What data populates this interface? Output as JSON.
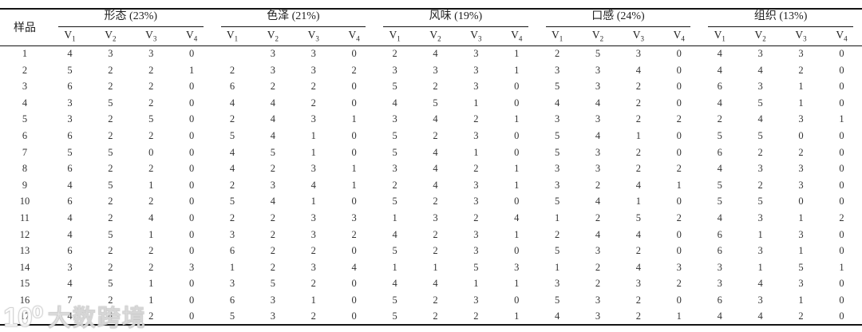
{
  "table": {
    "sample_header": "样品",
    "groups": [
      {
        "label": "形态 (23%)"
      },
      {
        "label": "色泽 (21%)"
      },
      {
        "label": "风味 (19%)"
      },
      {
        "label": "口感 (24%)"
      },
      {
        "label": "组织 (13%)"
      }
    ],
    "subheaders": [
      {
        "base": "V",
        "sub": "1"
      },
      {
        "base": "V",
        "sub": "2"
      },
      {
        "base": "V",
        "sub": "3"
      },
      {
        "base": "V",
        "sub": "4"
      }
    ],
    "rows": [
      {
        "sample": "1",
        "values": [
          "4",
          "3",
          "3",
          "0",
          "",
          "3",
          "3",
          "0",
          "2",
          "4",
          "3",
          "1",
          "2",
          "5",
          "3",
          "0",
          "4",
          "3",
          "3",
          "0"
        ]
      },
      {
        "sample": "2",
        "values": [
          "5",
          "2",
          "2",
          "1",
          "2",
          "3",
          "3",
          "2",
          "3",
          "3",
          "3",
          "1",
          "3",
          "3",
          "4",
          "0",
          "4",
          "4",
          "2",
          "0"
        ]
      },
      {
        "sample": "3",
        "values": [
          "6",
          "2",
          "2",
          "0",
          "6",
          "2",
          "2",
          "0",
          "5",
          "2",
          "3",
          "0",
          "5",
          "3",
          "2",
          "0",
          "6",
          "3",
          "1",
          "0"
        ]
      },
      {
        "sample": "4",
        "values": [
          "3",
          "5",
          "2",
          "0",
          "4",
          "4",
          "2",
          "0",
          "4",
          "5",
          "1",
          "0",
          "4",
          "4",
          "2",
          "0",
          "4",
          "5",
          "1",
          "0"
        ]
      },
      {
        "sample": "5",
        "values": [
          "3",
          "2",
          "5",
          "0",
          "2",
          "4",
          "3",
          "1",
          "3",
          "4",
          "2",
          "1",
          "3",
          "3",
          "2",
          "2",
          "2",
          "4",
          "3",
          "1"
        ]
      },
      {
        "sample": "6",
        "values": [
          "6",
          "2",
          "2",
          "0",
          "5",
          "4",
          "1",
          "0",
          "5",
          "2",
          "3",
          "0",
          "5",
          "4",
          "1",
          "0",
          "5",
          "5",
          "0",
          "0"
        ]
      },
      {
        "sample": "7",
        "values": [
          "5",
          "5",
          "0",
          "0",
          "4",
          "5",
          "1",
          "0",
          "5",
          "4",
          "1",
          "0",
          "5",
          "3",
          "2",
          "0",
          "6",
          "2",
          "2",
          "0"
        ]
      },
      {
        "sample": "8",
        "values": [
          "6",
          "2",
          "2",
          "0",
          "4",
          "2",
          "3",
          "1",
          "3",
          "4",
          "2",
          "1",
          "3",
          "3",
          "2",
          "2",
          "4",
          "3",
          "3",
          "0"
        ]
      },
      {
        "sample": "9",
        "values": [
          "4",
          "5",
          "1",
          "0",
          "2",
          "3",
          "4",
          "1",
          "2",
          "4",
          "3",
          "1",
          "3",
          "2",
          "4",
          "1",
          "5",
          "2",
          "3",
          "0"
        ]
      },
      {
        "sample": "10",
        "values": [
          "6",
          "2",
          "2",
          "0",
          "5",
          "4",
          "1",
          "0",
          "5",
          "2",
          "3",
          "0",
          "5",
          "4",
          "1",
          "0",
          "5",
          "5",
          "0",
          "0"
        ]
      },
      {
        "sample": "11",
        "values": [
          "4",
          "2",
          "4",
          "0",
          "2",
          "2",
          "3",
          "3",
          "1",
          "3",
          "2",
          "4",
          "1",
          "2",
          "5",
          "2",
          "4",
          "3",
          "1",
          "2"
        ]
      },
      {
        "sample": "12",
        "values": [
          "4",
          "5",
          "1",
          "0",
          "3",
          "2",
          "3",
          "2",
          "4",
          "2",
          "3",
          "1",
          "2",
          "4",
          "4",
          "0",
          "6",
          "1",
          "3",
          "0"
        ]
      },
      {
        "sample": "13",
        "values": [
          "6",
          "2",
          "2",
          "0",
          "6",
          "2",
          "2",
          "0",
          "5",
          "2",
          "3",
          "0",
          "5",
          "3",
          "2",
          "0",
          "6",
          "3",
          "1",
          "0"
        ]
      },
      {
        "sample": "14",
        "values": [
          "3",
          "2",
          "2",
          "3",
          "1",
          "2",
          "3",
          "4",
          "1",
          "1",
          "5",
          "3",
          "1",
          "2",
          "4",
          "3",
          "3",
          "1",
          "5",
          "1"
        ]
      },
      {
        "sample": "15",
        "values": [
          "4",
          "5",
          "1",
          "0",
          "3",
          "5",
          "2",
          "0",
          "4",
          "4",
          "1",
          "1",
          "3",
          "2",
          "3",
          "2",
          "3",
          "4",
          "3",
          "0"
        ]
      },
      {
        "sample": "16",
        "values": [
          "7",
          "2",
          "1",
          "0",
          "6",
          "3",
          "1",
          "0",
          "5",
          "2",
          "3",
          "0",
          "5",
          "3",
          "2",
          "0",
          "6",
          "3",
          "1",
          "0"
        ]
      },
      {
        "sample": "17",
        "values": [
          "4",
          "4",
          "2",
          "0",
          "5",
          "3",
          "2",
          "0",
          "5",
          "2",
          "2",
          "1",
          "4",
          "3",
          "2",
          "1",
          "4",
          "4",
          "2",
          "0"
        ]
      }
    ]
  },
  "watermark": {
    "logo": "10⁰",
    "text": "大数跨境"
  }
}
